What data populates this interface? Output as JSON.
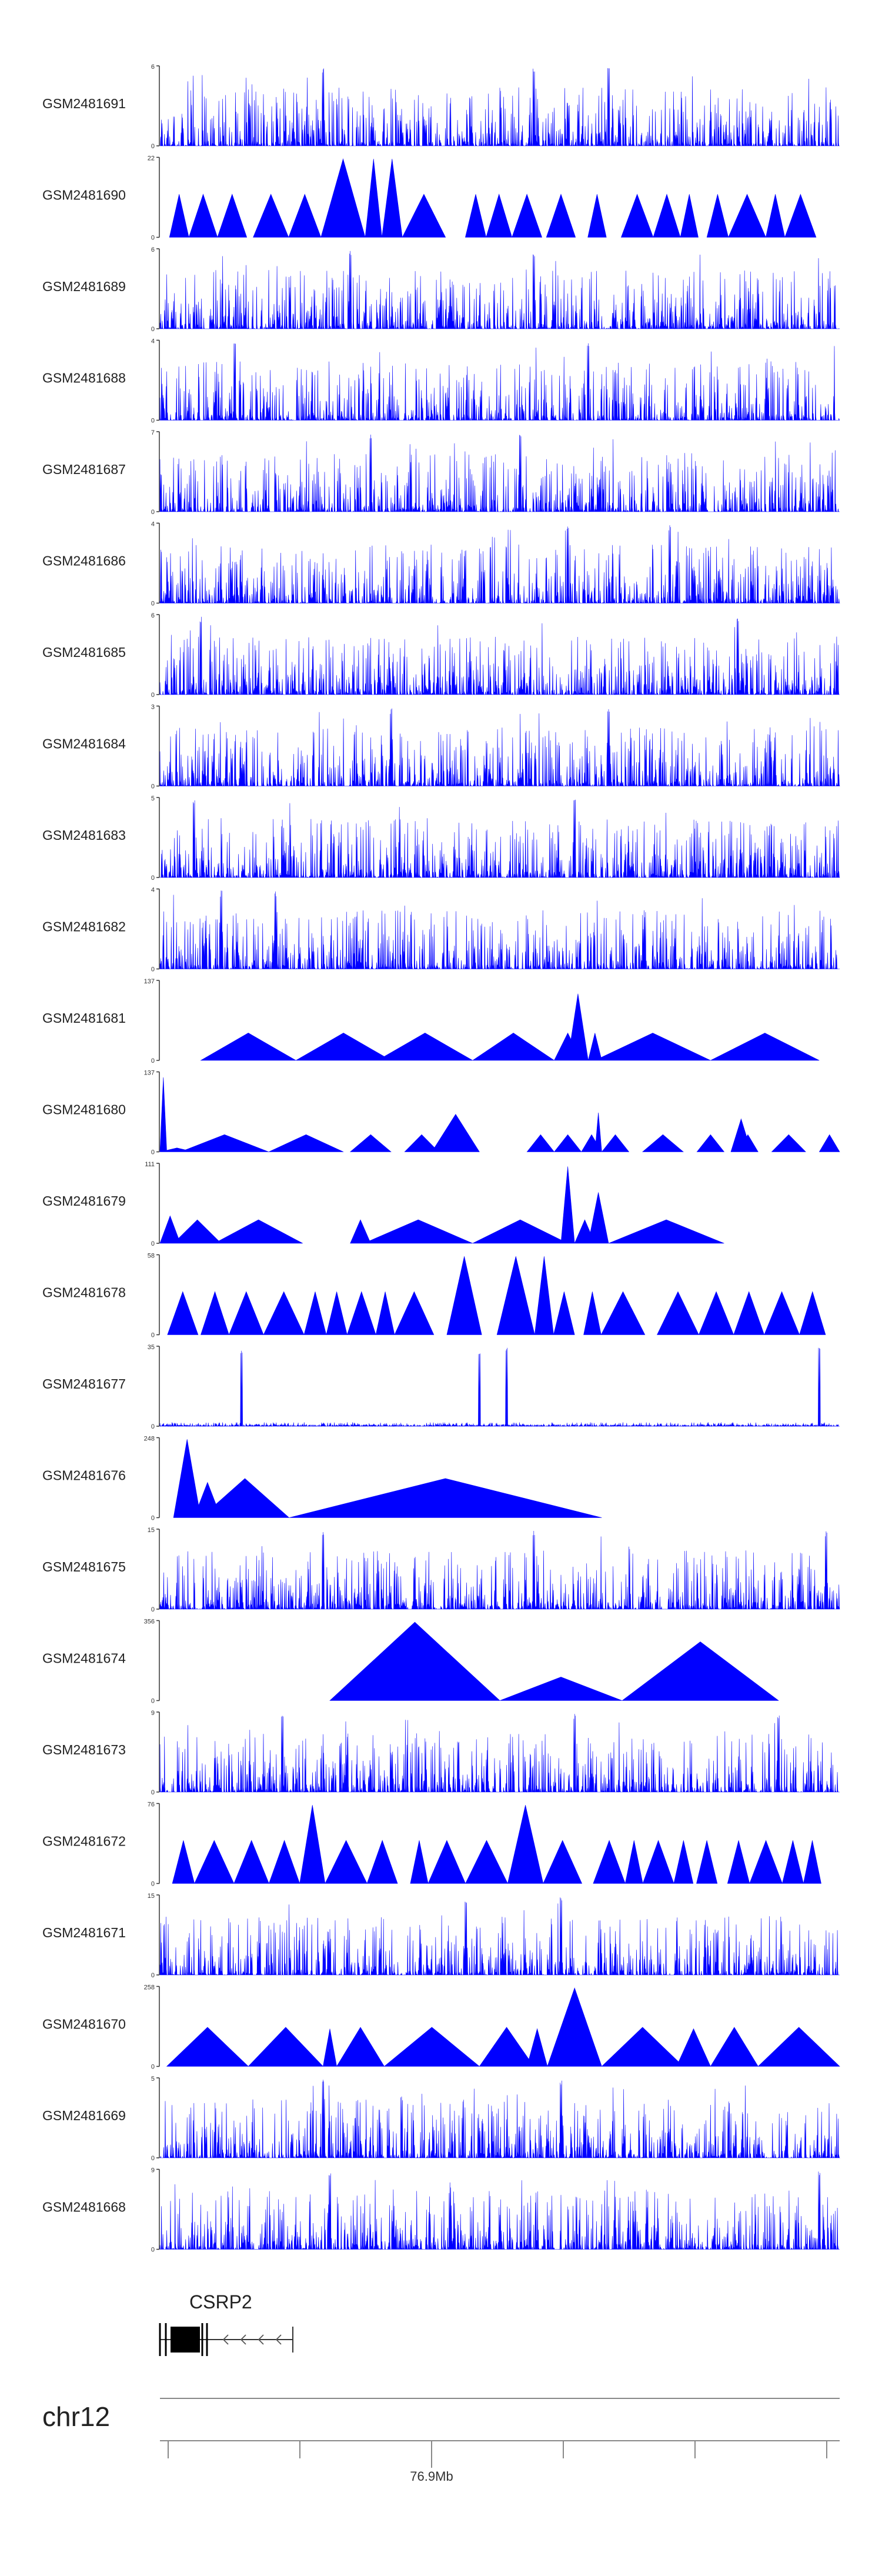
{
  "chart_data": {
    "type": "area",
    "title": "",
    "fill_color": "#0000ff",
    "axis_color": "#333333",
    "xlabel": "",
    "ylabel": "",
    "tracks": [
      {
        "name": "GSM2481691",
        "ymax": 6,
        "shape": "dense",
        "peaks": [
          0.24,
          0.55,
          0.66
        ]
      },
      {
        "name": "GSM2481690",
        "ymax": 22,
        "shape": "triangles",
        "peaks": [
          0.3,
          0.34
        ]
      },
      {
        "name": "GSM2481689",
        "ymax": 6,
        "shape": "dense",
        "peaks": [
          0.28,
          0.55
        ]
      },
      {
        "name": "GSM2481688",
        "ymax": 4,
        "shape": "dense",
        "peaks": [
          0.11,
          0.63
        ]
      },
      {
        "name": "GSM2481687",
        "ymax": 7,
        "shape": "dense",
        "peaks": [
          0.31,
          0.53
        ]
      },
      {
        "name": "GSM2481686",
        "ymax": 4,
        "shape": "dense",
        "peaks": [
          0.6,
          0.75
        ]
      },
      {
        "name": "GSM2481685",
        "ymax": 6,
        "shape": "dense",
        "peaks": [
          0.06,
          0.85
        ]
      },
      {
        "name": "GSM2481684",
        "ymax": 3,
        "shape": "dense",
        "peaks": [
          0.34,
          0.66
        ]
      },
      {
        "name": "GSM2481683",
        "ymax": 5,
        "shape": "dense",
        "peaks": [
          0.05,
          0.61
        ]
      },
      {
        "name": "GSM2481682",
        "ymax": 4,
        "shape": "dense",
        "peaks": [
          0.09,
          0.17
        ]
      },
      {
        "name": "GSM2481681",
        "ymax": 137,
        "shape": "sparse",
        "segments": [
          [
            0.06,
            0.2,
            0.35
          ],
          [
            0.2,
            0.34,
            0.35
          ],
          [
            0.32,
            0.46,
            0.35
          ],
          [
            0.46,
            0.58,
            0.35
          ],
          [
            0.58,
            0.62,
            0.35
          ],
          [
            0.6,
            0.63,
            0.85
          ],
          [
            0.63,
            0.65,
            0.35
          ],
          [
            0.64,
            0.81,
            0.35
          ],
          [
            0.81,
            0.97,
            0.35
          ]
        ]
      },
      {
        "name": "GSM2481680",
        "ymax": 137,
        "shape": "sparse",
        "segments": [
          [
            0.0,
            0.01,
            0.95
          ],
          [
            0.0,
            0.05,
            0.05
          ],
          [
            0.03,
            0.16,
            0.22
          ],
          [
            0.16,
            0.27,
            0.22
          ],
          [
            0.28,
            0.34,
            0.22
          ],
          [
            0.36,
            0.41,
            0.22
          ],
          [
            0.4,
            0.47,
            0.48
          ],
          [
            0.54,
            0.58,
            0.22
          ],
          [
            0.58,
            0.62,
            0.22
          ],
          [
            0.62,
            0.65,
            0.22
          ],
          [
            0.64,
            0.65,
            0.5
          ],
          [
            0.65,
            0.69,
            0.22
          ],
          [
            0.71,
            0.77,
            0.22
          ],
          [
            0.79,
            0.83,
            0.22
          ],
          [
            0.84,
            0.87,
            0.42
          ],
          [
            0.85,
            0.88,
            0.22
          ],
          [
            0.9,
            0.95,
            0.22
          ],
          [
            0.97,
            1.0,
            0.22
          ]
        ]
      },
      {
        "name": "GSM2481679",
        "ymax": 111,
        "shape": "sparse",
        "segments": [
          [
            0.0,
            0.03,
            0.35
          ],
          [
            0.02,
            0.09,
            0.3
          ],
          [
            0.08,
            0.21,
            0.3
          ],
          [
            0.28,
            0.31,
            0.3
          ],
          [
            0.3,
            0.46,
            0.3
          ],
          [
            0.46,
            0.6,
            0.3
          ],
          [
            0.59,
            0.61,
            0.98
          ],
          [
            0.61,
            0.64,
            0.3
          ],
          [
            0.63,
            0.66,
            0.65
          ],
          [
            0.66,
            0.83,
            0.3
          ]
        ]
      },
      {
        "name": "GSM2481678",
        "ymax": 58,
        "shape": "triangles",
        "peaks": [
          0.46,
          0.55
        ]
      },
      {
        "name": "GSM2481677",
        "ymax": 35,
        "shape": "baseline",
        "peaks": [
          0.12,
          0.47,
          0.51,
          0.97
        ]
      },
      {
        "name": "GSM2481676",
        "ymax": 248,
        "shape": "sparse",
        "segments": [
          [
            0.02,
            0.06,
            1.0
          ],
          [
            0.05,
            0.09,
            0.45
          ],
          [
            0.06,
            0.19,
            0.5
          ],
          [
            0.19,
            0.65,
            0.5
          ]
        ]
      },
      {
        "name": "GSM2481675",
        "ymax": 15,
        "shape": "dense",
        "peaks": [
          0.24,
          0.55,
          0.98
        ]
      },
      {
        "name": "GSM2481674",
        "ymax": 356,
        "shape": "sparse",
        "segments": [
          [
            0.25,
            0.5,
            1.0
          ],
          [
            0.5,
            0.68,
            0.3
          ],
          [
            0.68,
            0.91,
            0.75
          ]
        ]
      },
      {
        "name": "GSM2481673",
        "ymax": 9,
        "shape": "dense",
        "peaks": [
          0.18,
          0.61,
          0.91
        ]
      },
      {
        "name": "GSM2481672",
        "ymax": 76,
        "shape": "triangles",
        "peaks": [
          0.23,
          0.55
        ]
      },
      {
        "name": "GSM2481671",
        "ymax": 15,
        "shape": "dense",
        "peaks": [
          0.45,
          0.59
        ]
      },
      {
        "name": "GSM2481670",
        "ymax": 258,
        "shape": "sparse",
        "segments": [
          [
            0.01,
            0.13,
            0.5
          ],
          [
            0.13,
            0.24,
            0.5
          ],
          [
            0.24,
            0.26,
            0.48
          ],
          [
            0.26,
            0.33,
            0.5
          ],
          [
            0.33,
            0.47,
            0.5
          ],
          [
            0.47,
            0.55,
            0.5
          ],
          [
            0.54,
            0.57,
            0.48
          ],
          [
            0.57,
            0.65,
            1.0
          ],
          [
            0.65,
            0.77,
            0.5
          ],
          [
            0.76,
            0.81,
            0.48
          ],
          [
            0.81,
            0.88,
            0.5
          ],
          [
            0.88,
            1.0,
            0.5
          ]
        ]
      },
      {
        "name": "GSM2481669",
        "ymax": 5,
        "shape": "dense",
        "peaks": [
          0.24,
          0.59
        ]
      },
      {
        "name": "GSM2481668",
        "ymax": 9,
        "shape": "dense",
        "peaks": [
          0.25,
          0.97
        ]
      }
    ],
    "gene": {
      "name": "CSRP2",
      "strand": "-"
    },
    "chromosome": "chr12",
    "axis": {
      "ticks": [
        "",
        "",
        "76.9Mb",
        "",
        "",
        ""
      ],
      "labeled_tick": "76.9Mb"
    }
  }
}
